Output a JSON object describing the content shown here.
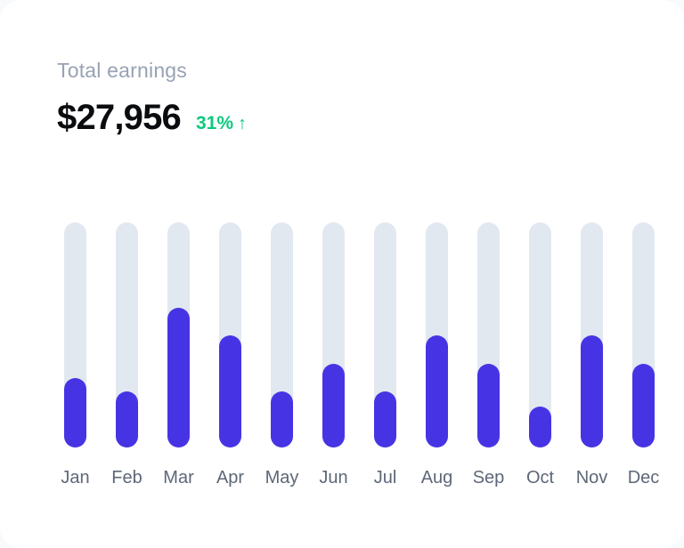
{
  "card": {
    "title": "Total earnings",
    "amount": "$27,956",
    "delta": "31%",
    "delta_arrow": "↑"
  },
  "colors": {
    "page_bg": "#f8fafc",
    "card_bg": "#ffffff",
    "title_text": "#98a2b3",
    "amount_text": "#0b0c10",
    "delta_text": "#0bc97e",
    "bar_track": "#e2e8f0",
    "bar_fill": "#4634e4",
    "month_label": "#5d6778"
  },
  "chart_data": {
    "type": "bar",
    "title": "Total earnings",
    "categories": [
      "Jan",
      "Feb",
      "Mar",
      "Apr",
      "May",
      "Jun",
      "Jul",
      "Aug",
      "Sep",
      "Oct",
      "Nov",
      "Dec"
    ],
    "values": [
      31,
      25,
      62,
      50,
      25,
      37,
      25,
      50,
      37,
      18,
      50,
      37
    ],
    "unit": "percent_of_track_height",
    "ylim": [
      0,
      100
    ],
    "xlabel": "",
    "ylabel": "",
    "grid": false,
    "legend": "none",
    "layout": "rounded pill tracks with partial fills, month labels beneath each bar"
  }
}
